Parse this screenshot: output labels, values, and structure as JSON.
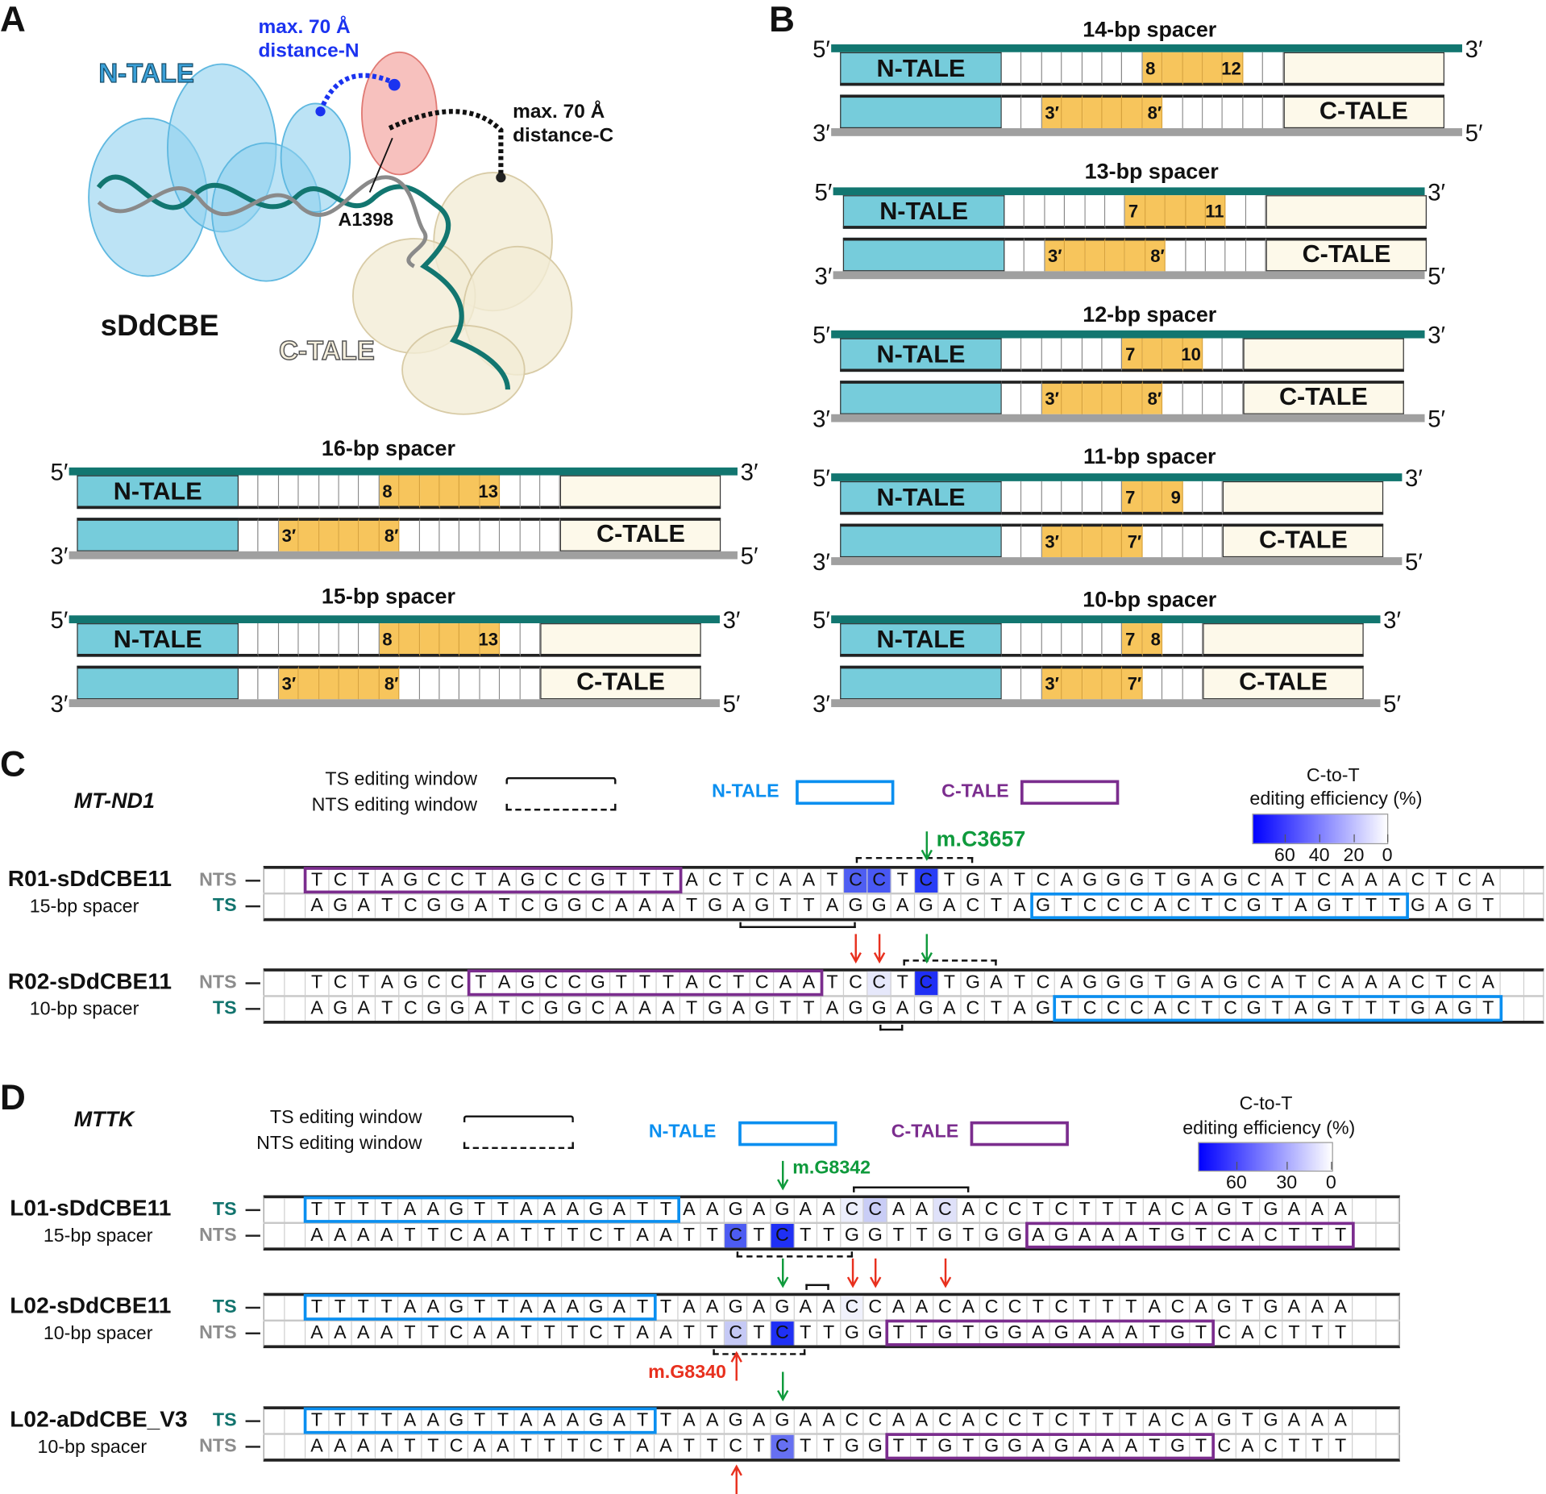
{
  "panel_labels": {
    "a": "A",
    "b": "B",
    "c": "C",
    "d": "D"
  },
  "panel_a": {
    "n_tale": "N-TALE",
    "c_tale": "C-TALE",
    "construct": "sDdCBE",
    "residue": "A1398",
    "distance_n": {
      "line1": "max. 70 Å",
      "line2": "distance-N"
    },
    "distance_c": {
      "line1": "max. 70 Å",
      "line2": "distance-C"
    },
    "colors": {
      "n_tale": "#5fb8e0",
      "deaminase": "#ee8a86",
      "c_tale": "#efe6cc",
      "dna_strand_1": "#127670",
      "dna_strand_2": "#8a8a8a",
      "distance_n": "#1b33f0",
      "distance_c": "#111111"
    }
  },
  "diagram": {
    "n_tale": "N-TALE",
    "c_tale": "C-TALE",
    "five_prime": "5′",
    "three_prime": "3′",
    "colors": {
      "top_strand": "#127670",
      "bottom_strand": "#a0a0a0",
      "tale": "#76ccdb",
      "window": "#f7c55c",
      "tale_end": "#fdf9ea"
    }
  },
  "spacers": [
    {
      "title": "16-bp spacer",
      "length": 16,
      "top_range": [
        8,
        13
      ],
      "top_labels": [
        "8",
        "13"
      ],
      "bottom_range": [
        3,
        8
      ],
      "bottom_labels": [
        "3′",
        "8′"
      ]
    },
    {
      "title": "15-bp spacer",
      "length": 15,
      "top_range": [
        8,
        13
      ],
      "top_labels": [
        "8",
        "13"
      ],
      "bottom_range": [
        3,
        8
      ],
      "bottom_labels": [
        "3′",
        "8′"
      ]
    },
    {
      "title": "14-bp spacer",
      "length": 14,
      "top_range": [
        8,
        12
      ],
      "top_labels": [
        "8",
        "12"
      ],
      "bottom_range": [
        3,
        8
      ],
      "bottom_labels": [
        "3′",
        "8′"
      ]
    },
    {
      "title": "13-bp spacer",
      "length": 13,
      "top_range": [
        7,
        11
      ],
      "top_labels": [
        "7",
        "11"
      ],
      "bottom_range": [
        3,
        8
      ],
      "bottom_labels": [
        "3′",
        "8′"
      ]
    },
    {
      "title": "12-bp spacer",
      "length": 12,
      "top_range": [
        7,
        10
      ],
      "top_labels": [
        "7",
        "10"
      ],
      "bottom_range": [
        3,
        8
      ],
      "bottom_labels": [
        "3′",
        "8′"
      ]
    },
    {
      "title": "11-bp spacer",
      "length": 11,
      "top_range": [
        7,
        9
      ],
      "top_labels": [
        "7",
        "9"
      ],
      "bottom_range": [
        3,
        7
      ],
      "bottom_labels": [
        "3′",
        "7′"
      ]
    },
    {
      "title": "10-bp spacer",
      "length": 10,
      "top_range": [
        7,
        8
      ],
      "top_labels": [
        "7",
        "8"
      ],
      "bottom_range": [
        3,
        7
      ],
      "bottom_labels": [
        "3′",
        "7′"
      ]
    }
  ],
  "tale_box_colors": {
    "N-TALE": "#0a8ff0",
    "C-TALE": "#7b2d8e"
  },
  "strand_label_colors": {
    "NTS": "#8c8c8c",
    "TS": "#12746e"
  },
  "arrow_colors": {
    "green": "#0f9a3c",
    "red": "#e8301e"
  },
  "panel_c": {
    "gene": "MT-ND1",
    "legend": {
      "ts_window": "TS editing window",
      "nts_window": "NTS editing window",
      "n_tale": "N-TALE",
      "c_tale": "C-TALE"
    },
    "colorbar": {
      "title_line1": "C-to-T",
      "title_line2": "editing efficiency (%)",
      "ticks": [
        "60",
        "40",
        "20",
        "0"
      ],
      "max_color": "#0000ff",
      "min_color": "#ffffff"
    },
    "tracks": [
      {
        "name": "R01-sDdCBE11",
        "spacer": "15-bp spacer",
        "strands": [
          {
            "label": "NTS",
            "seq": "TCTAGCCTAGCCGTTTACTCAATCCTCTGATCAGGGTGAGCATCAAACTCA",
            "highlights": [
              {
                "i": 23,
                "color": "#4f5ef2"
              },
              {
                "i": 24,
                "color": "#4858f4"
              },
              {
                "i": 26,
                "color": "#2a3ef6"
              }
            ]
          },
          {
            "label": "TS",
            "seq": "AGATCGGATCGGCAAATGAGTTAGGAGACTAGTCCCACTCGTAGTTTGAGT",
            "highlights": []
          }
        ],
        "boxes": [
          {
            "strand": 0,
            "start": 0,
            "end": 15,
            "tale": "C-TALE"
          },
          {
            "strand": 1,
            "start": 31,
            "end": 46,
            "tale": "N-TALE"
          }
        ],
        "windows": [
          {
            "strand": 0,
            "start": 23,
            "end": 28,
            "type": "NTS"
          },
          {
            "strand": 1,
            "start": 18,
            "end": 23,
            "type": "TS"
          }
        ],
        "arrows": [
          {
            "i": 26,
            "side": "top",
            "color": "green",
            "label": "m.C3657"
          }
        ]
      },
      {
        "name": "R02-sDdCBE11",
        "spacer": "10-bp spacer",
        "strands": [
          {
            "label": "NTS",
            "seq": "TCTAGCCTAGCCGTTTACTCAATCCTCTGATCAGGGTGAGCATCAAACTCA",
            "highlights": [
              {
                "i": 24,
                "color": "#e6e8fb"
              },
              {
                "i": 26,
                "color": "#1f2ff5"
              }
            ]
          },
          {
            "label": "TS",
            "seq": "AGATCGGATCGGCAAATGAGTTAGGAGACTAGTCCCACTCGTAGTTTGAGT",
            "highlights": []
          }
        ],
        "boxes": [
          {
            "strand": 0,
            "start": 7,
            "end": 21,
            "tale": "C-TALE"
          },
          {
            "strand": 1,
            "start": 32,
            "end": 50,
            "tale": "N-TALE"
          }
        ],
        "windows": [
          {
            "strand": 0,
            "start": 25,
            "end": 29,
            "type": "NTS"
          },
          {
            "strand": 1,
            "start": 24,
            "end": 25,
            "type": "TS"
          }
        ],
        "arrows": [
          {
            "i": 23,
            "side": "top",
            "color": "red",
            "label": ""
          },
          {
            "i": 24,
            "side": "top",
            "color": "red",
            "label": ""
          },
          {
            "i": 26,
            "side": "top",
            "color": "green",
            "label": ""
          }
        ]
      }
    ]
  },
  "panel_d": {
    "gene": "MTTK",
    "legend": {
      "ts_window": "TS editing window",
      "nts_window": "NTS editing window",
      "n_tale": "N-TALE",
      "c_tale": "C-TALE"
    },
    "colorbar": {
      "title_line1": "C-to-T",
      "title_line2": "editing efficiency (%)",
      "ticks": [
        "60",
        "30",
        "0"
      ],
      "max_color": "#0000ff",
      "min_color": "#ffffff"
    },
    "tracks": [
      {
        "name": "L01-sDdCBE11",
        "spacer": "15-bp spacer",
        "strands": [
          {
            "label": "TS",
            "seq": "TTTTAAGTTAAAGATTAAGAGAACCAACACCTCTTTACAGTGAAA",
            "highlights": [
              {
                "i": 23,
                "color": "#eceefc"
              },
              {
                "i": 24,
                "color": "#c9cdf6"
              },
              {
                "i": 27,
                "color": "#dfe1f9"
              }
            ]
          },
          {
            "label": "NTS",
            "seq": "AAAATTCAATTTCTAATTCTCTTGGTTGTGGAGAAATGTCACTTT",
            "highlights": [
              {
                "i": 18,
                "color": "#4d5cf2"
              },
              {
                "i": 20,
                "color": "#1f30f5"
              }
            ]
          }
        ],
        "boxes": [
          {
            "strand": 0,
            "start": 0,
            "end": 15,
            "tale": "N-TALE"
          },
          {
            "strand": 1,
            "start": 31,
            "end": 44,
            "tale": "C-TALE"
          }
        ],
        "windows": [
          {
            "strand": 0,
            "start": 23,
            "end": 28,
            "type": "TS"
          },
          {
            "strand": 1,
            "start": 18,
            "end": 23,
            "type": "NTS"
          }
        ],
        "arrows": [
          {
            "i": 20,
            "side": "top",
            "color": "green",
            "label": "m.G8342"
          }
        ]
      },
      {
        "name": "L02-sDdCBE11",
        "spacer": "10-bp spacer",
        "strands": [
          {
            "label": "TS",
            "seq": "TTTTAAGTTAAAGATTAAGAGAACCAACACCTCTTTACAGTGAAA",
            "highlights": [
              {
                "i": 23,
                "color": "#f0f1fc"
              }
            ]
          },
          {
            "label": "NTS",
            "seq": "AAAATTCAATTTCTAATTCTCTTGGTTGTGGAGAAATGTCACTTT",
            "highlights": [
              {
                "i": 18,
                "color": "#c5c9f5"
              },
              {
                "i": 20,
                "color": "#1f30f5"
              }
            ]
          }
        ],
        "boxes": [
          {
            "strand": 0,
            "start": 0,
            "end": 14,
            "tale": "N-TALE"
          },
          {
            "strand": 1,
            "start": 25,
            "end": 38,
            "tale": "C-TALE"
          }
        ],
        "windows": [
          {
            "strand": 0,
            "start": 21,
            "end": 22,
            "type": "TS"
          },
          {
            "strand": 1,
            "start": 17,
            "end": 21,
            "type": "NTS"
          }
        ],
        "arrows": [
          {
            "i": 20,
            "side": "top",
            "color": "green",
            "label": ""
          },
          {
            "i": 23,
            "side": "top",
            "color": "red",
            "label": ""
          },
          {
            "i": 24,
            "side": "top",
            "color": "red",
            "label": ""
          },
          {
            "i": 27,
            "side": "top",
            "color": "red",
            "label": ""
          },
          {
            "i": 18,
            "side": "bottom",
            "color": "red",
            "label": "m.G8340"
          }
        ]
      },
      {
        "name": "L02-aDdCBE_V3",
        "spacer": "10-bp spacer",
        "strands": [
          {
            "label": "TS",
            "seq": "TTTTAAGTTAAAGATTAAGAGAACCAACACCTCTTTACAGTGAAA",
            "highlights": []
          },
          {
            "label": "NTS",
            "seq": "AAAATTCAATTTCTAATTCTCTTGGTTGTGGAGAAATGTCACTTT",
            "highlights": [
              {
                "i": 20,
                "color": "#6670f2"
              }
            ]
          }
        ],
        "boxes": [
          {
            "strand": 0,
            "start": 0,
            "end": 14,
            "tale": "N-TALE"
          },
          {
            "strand": 1,
            "start": 25,
            "end": 38,
            "tale": "C-TALE"
          }
        ],
        "windows": [],
        "arrows": [
          {
            "i": 20,
            "side": "top",
            "color": "green",
            "label": ""
          },
          {
            "i": 18,
            "side": "bottom",
            "color": "red",
            "label": ""
          }
        ]
      }
    ]
  }
}
